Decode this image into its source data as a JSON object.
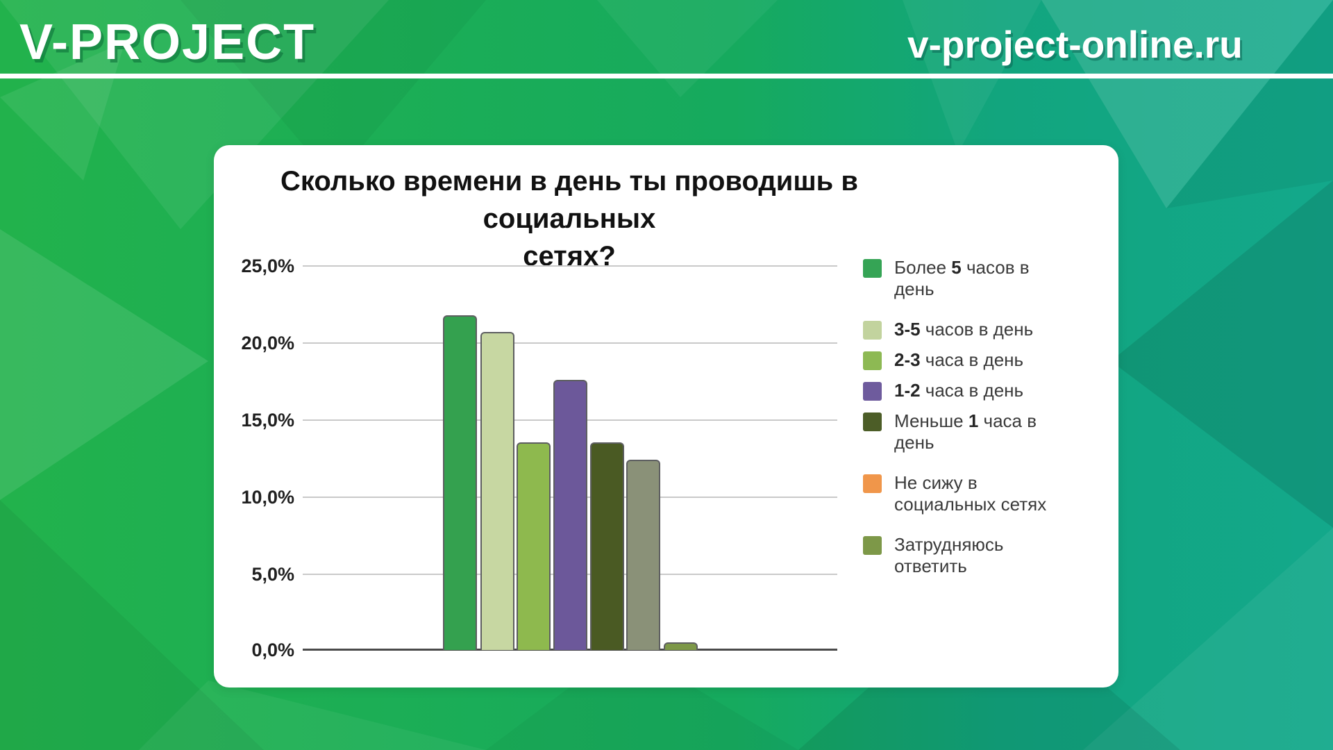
{
  "header": {
    "logo": "V-PROJECT",
    "url": "v-project-online.ru"
  },
  "theme": {
    "brand_green": "#22b24c",
    "brand_teal": "#13a88b",
    "card_background": "#ffffff",
    "title_color": "#111111",
    "gridline_color": "#c9c9c9",
    "axis_line_color": "#4a4a4a",
    "bar_outline_color": "#5d5e60",
    "legend_text_color": "#3a3a3a"
  },
  "chart_data": {
    "type": "bar",
    "title": "Сколько времени в день ты проводишь в социальных сетях?",
    "title_lines": [
      "Сколько времени в день ты проводишь в социальных",
      "сетях?"
    ],
    "xlabel": "",
    "ylabel": "",
    "ylim": [
      0,
      25
    ],
    "ytick_step": 5,
    "yticks": [
      "25,0%",
      "20,0%",
      "15,0%",
      "10,0%",
      "5,0%",
      "0,0%"
    ],
    "grid": true,
    "legend_position": "right",
    "value_unit": "%",
    "series": [
      {
        "label": "Более 5 часов в день",
        "label_pre": "Более ",
        "label_num": "5",
        "label_post": " часов в день",
        "value": 21.8,
        "bar_color": "#34a14f",
        "legend_color": "#35a455"
      },
      {
        "label": "3-5 часов в день",
        "label_pre": "",
        "label_num": "3-5",
        "label_post": " часов в день",
        "value": 20.7,
        "bar_color": "#c7d7a2",
        "legend_color": "#c2d39e"
      },
      {
        "label": "2-3 часа в день",
        "label_pre": "",
        "label_num": "2-3",
        "label_post": " часа в день",
        "value": 13.5,
        "bar_color": "#8eb94e",
        "legend_color": "#8db953"
      },
      {
        "label": "1-2 часа в день",
        "label_pre": "",
        "label_num": "1-2",
        "label_post": " часа в день",
        "value": 17.6,
        "bar_color": "#6c589a",
        "legend_color": "#6e5b9d"
      },
      {
        "label": "Меньше 1 часа в день",
        "label_pre": "Меньше ",
        "label_num": "1",
        "label_post": " часа в день",
        "value": 13.5,
        "bar_color": "#4a5a23",
        "legend_color": "#4c5d27"
      },
      {
        "label": "Не сижу в социальных сетях",
        "label_pre": "Не сижу в социальных сетях",
        "label_num": "",
        "label_post": "",
        "value": 12.4,
        "bar_color": "#8a9178",
        "legend_color": "#f0964a"
      },
      {
        "label": "Затрудняюсь ответить",
        "label_pre": "Затрудняюсь ответить",
        "label_num": "",
        "label_post": "",
        "value": 0.5,
        "bar_color": "#7d9848",
        "legend_color": "#7d9848"
      }
    ]
  }
}
